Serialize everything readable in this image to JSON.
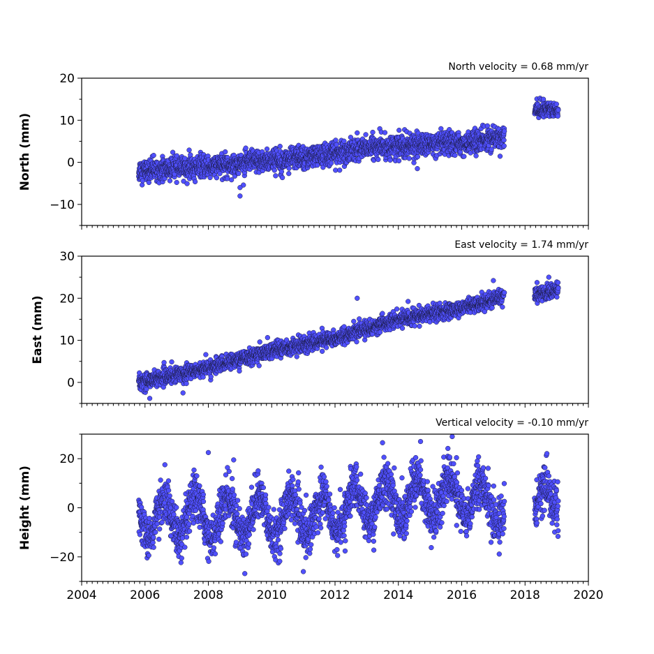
{
  "chart_data": {
    "type": "scatter",
    "x_axis": {
      "unit": "decimal year",
      "range": [
        2004,
        2020
      ],
      "major_ticks": [
        2004,
        2006,
        2008,
        2010,
        2012,
        2014,
        2016,
        2018,
        2020
      ],
      "tick_labels": [
        "2004",
        "2006",
        "2008",
        "2010",
        "2012",
        "2014",
        "2016",
        "2018",
        "2020"
      ],
      "minor_tick_step_years": 0.1667
    },
    "marker_color": "#5050ff",
    "panels": [
      {
        "id": "north",
        "ylabel": "North (mm)",
        "annotation": "North velocity = 0.68 mm/yr",
        "ylim": [
          -15,
          20
        ],
        "y_ticks": [
          -10,
          0,
          10,
          20
        ],
        "y_tick_labels": [
          "−10",
          "0",
          "10",
          "20"
        ],
        "segments": [
          {
            "x_start": 2005.8,
            "x_end": 2017.35,
            "trend": [
              [
                2005.8,
                -2.0
              ],
              [
                2008.0,
                -1.0
              ],
              [
                2010.0,
                0.5
              ],
              [
                2012.0,
                2.0
              ],
              [
                2013.0,
                3.5
              ],
              [
                2014.5,
                4.0
              ],
              [
                2016.0,
                4.5
              ],
              [
                2017.35,
                6.0
              ]
            ],
            "scatter": 1.3,
            "seasonal_amp": 0
          },
          {
            "x_start": 2018.3,
            "x_end": 2019.05,
            "trend": [
              [
                2018.3,
                12.5
              ],
              [
                2019.05,
                12.5
              ]
            ],
            "scatter": 1.0,
            "seasonal_amp": 0
          }
        ],
        "outliers": [
          [
            2009.0,
            -8.0
          ],
          [
            2009.0,
            -6.0
          ],
          [
            2012.7,
            7.0
          ],
          [
            2014.6,
            -1.5
          ]
        ]
      },
      {
        "id": "east",
        "ylabel": "East (mm)",
        "annotation": "East velocity = 1.74 mm/yr",
        "ylim": [
          -5,
          30
        ],
        "y_ticks": [
          0,
          10,
          20,
          30
        ],
        "y_tick_labels": [
          "0",
          "10",
          "20",
          "30"
        ],
        "segments": [
          {
            "x_start": 2005.8,
            "x_end": 2017.35,
            "trend": [
              [
                2005.8,
                0.0
              ],
              [
                2008.0,
                3.5
              ],
              [
                2010.0,
                7.5
              ],
              [
                2012.0,
                10.5
              ],
              [
                2014.0,
                15.0
              ],
              [
                2016.0,
                17.5
              ],
              [
                2017.35,
                20.5
              ]
            ],
            "scatter": 0.9,
            "seasonal_amp": 0
          },
          {
            "x_start": 2018.3,
            "x_end": 2019.05,
            "trend": [
              [
                2018.3,
                21.0
              ],
              [
                2019.05,
                22.0
              ]
            ],
            "scatter": 0.9,
            "seasonal_amp": 0
          }
        ],
        "outliers": [
          [
            2012.7,
            20.0
          ],
          [
            2006.15,
            -3.8
          ],
          [
            2007.2,
            -2.5
          ],
          [
            2018.75,
            25.0
          ],
          [
            2017.0,
            24.2
          ]
        ]
      },
      {
        "id": "height",
        "ylabel": "Height (mm)",
        "annotation": "Vertical velocity = -0.10 mm/yr",
        "ylim": [
          -30,
          30
        ],
        "y_ticks": [
          -20,
          0,
          20
        ],
        "y_tick_labels": [
          "−20",
          "0",
          "20"
        ],
        "segments": [
          {
            "x_start": 2005.8,
            "x_end": 2017.35,
            "trend": [
              [
                2005.8,
                -4.0
              ],
              [
                2010.0,
                -4.0
              ],
              [
                2012.0,
                -2.0
              ],
              [
                2013.0,
                2.0
              ],
              [
                2014.0,
                3.0
              ],
              [
                2016.0,
                5.0
              ],
              [
                2017.35,
                0.0
              ]
            ],
            "scatter": 4.5,
            "seasonal_amp": 8
          },
          {
            "x_start": 2018.3,
            "x_end": 2019.05,
            "trend": [
              [
                2018.3,
                2.0
              ],
              [
                2019.05,
                4.0
              ]
            ],
            "scatter": 5.0,
            "seasonal_amp": 6
          }
        ],
        "outliers": [
          [
            2008.0,
            22.5
          ],
          [
            2008.8,
            19.5
          ],
          [
            2011.0,
            -26.0
          ],
          [
            2015.7,
            29.0
          ],
          [
            2013.5,
            26.5
          ],
          [
            2014.7,
            27.0
          ]
        ]
      }
    ]
  }
}
